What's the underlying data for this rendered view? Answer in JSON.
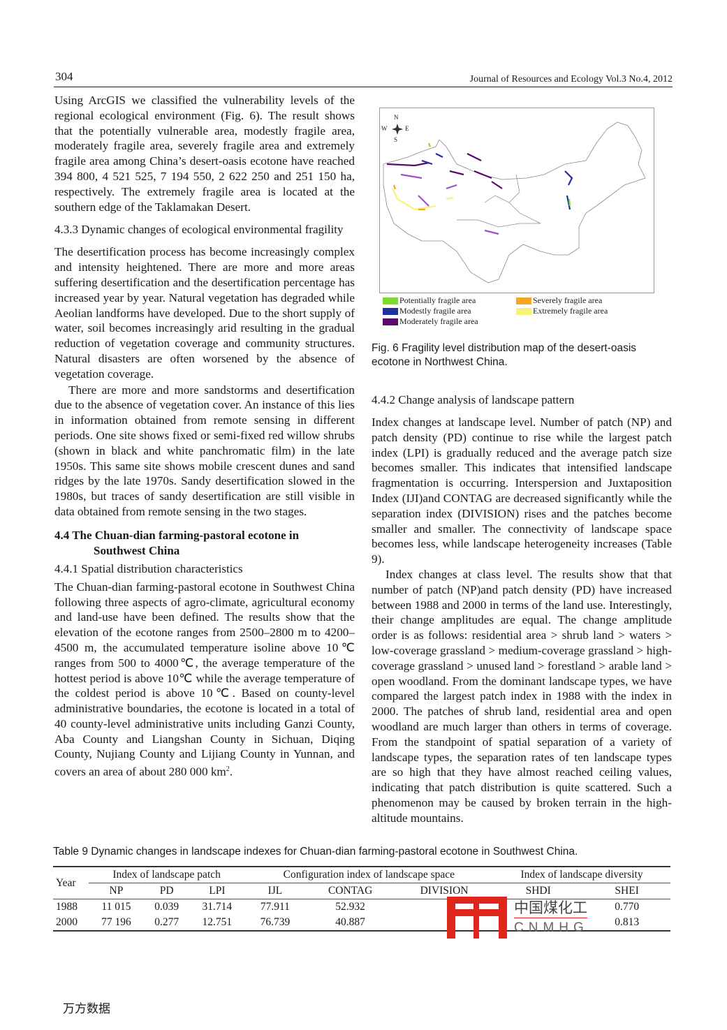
{
  "header": {
    "page_number": "304",
    "journal": "Journal of Resources and  Ecology Vol.3 No.4, 2012"
  },
  "left": {
    "p1": "Using ArcGIS we classified the vulnerability levels of the regional ecological environment (Fig. 6). The result shows that the potentially vulnerable area, modestly fragile area, moderately fragile area, severely fragile area and extremely fragile area among China’s desert-oasis ecotone have reached 394 800, 4 521 525, 7 194 550, 2 622 250 and 251 150 ha, respectively. The extremely fragile area is located at the southern edge of the Taklamakan Desert.",
    "h433": "4.3.3 Dynamic changes of ecological environmental fragility",
    "p2": "The desertification process has become increasingly complex and intensity heightened. There are more and more areas suffering desertification and the desertification percentage has increased year by year. Natural vegetation has degraded while Aeolian landforms have developed. Due to the short supply of water, soil becomes increasingly arid resulting in the gradual reduction of vegetation coverage and community structures. Natural disasters are often worsened by the absence of vegetation coverage.",
    "p3": "There are more and more sandstorms and desertification due to the absence of vegetation cover. An instance of this lies in information obtained from remote sensing in different periods. One site shows fixed or semi-fixed red willow shrubs (shown in black and white panchromatic film) in the late 1950s. This same site shows mobile crescent dunes and sand ridges by the late 1970s. Sandy desertification slowed in the 1980s, but traces of sandy desertification are still visible in data obtained from remote sensing in the two stages.",
    "h44a": "4.4 The Chuan-dian farming-pastoral ecotone in",
    "h44b": "Southwest China",
    "h441": "4.4.1 Spatial distribution characteristics",
    "p4": "The Chuan-dian farming-pastoral ecotone in Southwest China following three aspects of agro-climate, agricultural economy and land-use have been defined. The results show that the elevation of the ecotone ranges from 2500–2800 m to 4200–4500 m, the accumulated temperature isoline above 10℃ ranges from 500 to 4000℃, the average temperature of the hottest period is above 10℃ while the average temperature of the coldest period is above 10℃. Based on county-level administrative boundaries, the ecotone is located in a total of 40 county-level administrative units including Ganzi County, Aba County and Liangshan County in Sichuan, Diqing County, Nujiang County and Lijiang County in Yunnan, and covers an area of about 280 000 km",
    "p4_sup": "2",
    "p4_end": "."
  },
  "figure": {
    "compass": {
      "n": "N",
      "s": "S",
      "e": "E",
      "w": "W"
    },
    "legend": [
      {
        "label": "Potentially fragile area",
        "color": "#7ddc2a"
      },
      {
        "label": "Modestly fragile area",
        "color": "#1f2fa0"
      },
      {
        "label": "Moderately fragile area",
        "color": "#5a0a6e"
      },
      {
        "label": "Severely fragile area",
        "color": "#f5a623"
      },
      {
        "label": "Extremely fragile area",
        "color": "#f7f27a"
      }
    ],
    "caption": "Fig. 6 Fragility level distribution map of the desert-oasis ecotone in Northwest China."
  },
  "right": {
    "h442": "4.4.2 Change analysis of landscape pattern",
    "p1": "Index changes at landscape level. Number of patch (NP) and patch density (PD) continue to rise while the largest patch index (LPI) is gradually reduced and the average patch size becomes smaller. This indicates that intensified landscape fragmentation is occurring. Interspersion and Juxtaposition Index (IJI)and CONTAG are decreased significantly while the separation index (DIVISION) rises and the patches become smaller and smaller. The connectivity of landscape space becomes less, while landscape heterogeneity increases (Table 9).",
    "p2": "Index changes at class level. The results show that that number of patch (NP)and patch density (PD) have increased between 1988 and 2000 in terms of the land use. Interestingly, their change amplitudes are equal. The change amplitude order is as follows: residential area > shrub land > waters > low-coverage grassland > medium-coverage grassland > high-coverage grassland > unused land > forestland > arable land > open woodland. From the dominant landscape types, we have compared the largest patch index in 1988 with the index in 2000. The patches of shrub land, residential area and open woodland are much larger than others in terms of coverage. From the standpoint of spatial separation of a variety of landscape types, the separation rates of ten landscape types are so high that they have almost reached ceiling values, indicating that patch distribution is quite scattered. Such a phenomenon may be caused by broken terrain in the high-altitude mountains."
  },
  "table": {
    "caption": "Table 9 Dynamic changes in landscape indexes for Chuan-dian farming-pastoral ecotone in Southwest China.",
    "year_label": "Year",
    "groups": [
      "Index of landscape patch",
      "Configuration index of landscape space",
      "Index of landscape diversity"
    ],
    "columns": [
      "NP",
      "PD",
      "LPI",
      "IJL",
      "CONTAG",
      "DIVISION",
      "SHDI",
      "SHEI"
    ],
    "rows": [
      [
        "1988",
        "11 015",
        "0.039",
        "31.714",
        "77.911",
        "52.932",
        "",
        "",
        "0.770"
      ],
      [
        "2000",
        "77 196",
        "0.277",
        "12.751",
        "76.739",
        "40.887",
        "",
        "",
        "0.813"
      ]
    ]
  },
  "watermark": {
    "logo_cn": "中国煤化工",
    "logo_en": "CNMHG",
    "footer": "万方数据"
  }
}
